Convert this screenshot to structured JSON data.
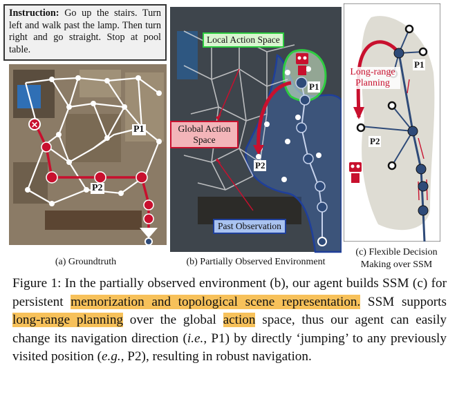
{
  "instruction": {
    "label": "Instruction:",
    "text": "Go up the stairs. Turn left and walk past the lamp. Then turn right and go straight. Stop at pool table."
  },
  "panels": {
    "a": {
      "caption": "(a) Groundtruth",
      "p1": "P1",
      "p2": "P2"
    },
    "b": {
      "caption": "(b) Partially Observed Environment",
      "local_action_space": "Local Action Space",
      "global_action_space_line1": "Global Action",
      "global_action_space_line2": "Space",
      "past_observation": "Past Observation",
      "p1": "P1",
      "p2": "P2"
    },
    "c": {
      "caption_line1": "(c) Flexible Decision",
      "caption_line2": "Making over SSM",
      "long_range_line1": "Long-range",
      "long_range_line2": "Planning",
      "p1": "P1",
      "p2": "P2"
    }
  },
  "figure_caption": {
    "s1": "Figure 1:  In the partially observed environment (b), our agent builds SSM (c) for persistent ",
    "h1": "memorization and topological scene representation.",
    "s2": " SSM supports ",
    "h2": "long-range planning",
    "s3": " over the global ",
    "h3": "action",
    "s4": " space, thus our agent can easily change its navigation direction (",
    "ie": "i.e.",
    "s5": ", P1) by directly ‘jumping’ to any previously visited position (",
    "eg": "e.g.",
    "s6": ", P2), resulting in robust navigation."
  },
  "colors": {
    "path_red": "#c8102e",
    "node_blue": "#2e4a78",
    "local_green": "#2ecc40",
    "observed_blue": "#3a6fd0",
    "highlight": "#f7c15a"
  }
}
